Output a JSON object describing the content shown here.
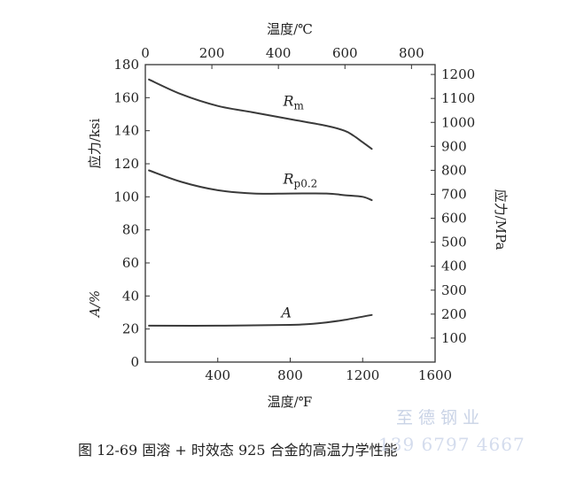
{
  "chart_data": {
    "type": "line",
    "x_bottom": {
      "label": "温度/℉",
      "range": [
        0,
        1600
      ],
      "ticks": [
        400,
        800,
        1200,
        1600
      ]
    },
    "x_top": {
      "label": "温度/℃",
      "range": [
        0,
        871
      ],
      "ticks": [
        0,
        200,
        400,
        600,
        800
      ]
    },
    "y_left": {
      "label": "应力/ksi",
      "sub_label": "A/%",
      "range": [
        0,
        180
      ],
      "ticks": [
        0,
        20,
        40,
        60,
        80,
        100,
        120,
        140,
        160,
        180
      ]
    },
    "y_right": {
      "label": "应力/MPa",
      "range": [
        0,
        1241
      ],
      "ticks": [
        100,
        200,
        300,
        400,
        500,
        600,
        700,
        800,
        900,
        1000,
        1100,
        1200
      ]
    },
    "series": [
      {
        "name": "Rm",
        "name_base": "R",
        "name_sub": "m",
        "x": [
          20,
          200,
          400,
          600,
          800,
          1000,
          1100,
          1150,
          1200,
          1250
        ],
        "y": [
          171,
          162,
          155,
          151,
          147,
          143,
          140,
          137,
          133,
          129
        ]
      },
      {
        "name": "Rp0.2",
        "name_base": "R",
        "name_sub": "p0.2",
        "x": [
          20,
          200,
          400,
          600,
          800,
          1000,
          1100,
          1200,
          1250
        ],
        "y": [
          116,
          109,
          104,
          102,
          102,
          102,
          101,
          100,
          98
        ]
      },
      {
        "name": "A",
        "name_base": "A",
        "name_sub": "",
        "x": [
          20,
          400,
          800,
          900,
          1000,
          1100,
          1200,
          1250
        ],
        "y": [
          22,
          22,
          22.5,
          23,
          24,
          25.5,
          27.5,
          28.5
        ]
      }
    ],
    "grid": false,
    "legend": "inline labels"
  },
  "caption": "图 12-69    固溶 + 时效态 925 合金的高温力学性能",
  "watermark": {
    "name": "至德钢业",
    "phone": "139 6797 4667"
  },
  "colors": {
    "line": "#3a3a3a",
    "axis": "#333333",
    "watermark": "#c9d3e6"
  }
}
